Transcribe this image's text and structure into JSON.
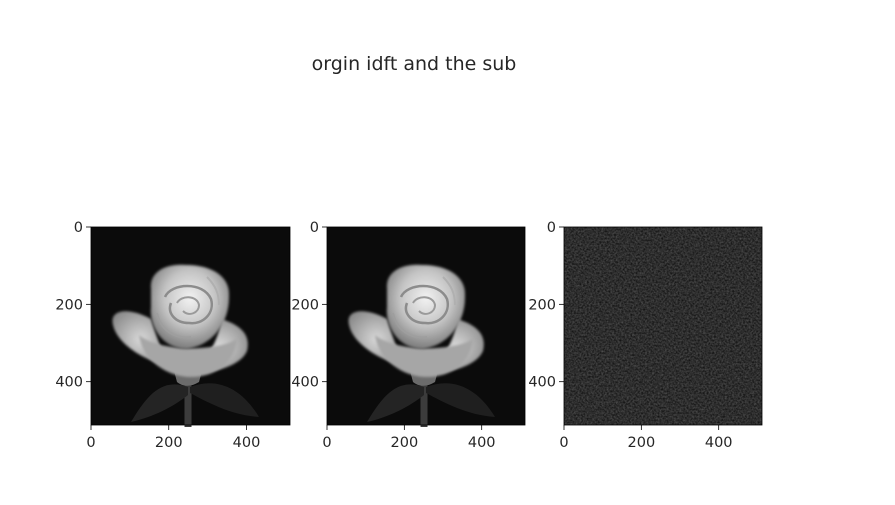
{
  "title": "orgin idft and the sub",
  "chart_data": [
    {
      "type": "image",
      "subject": "grayscale rose",
      "xlim": [
        0,
        512
      ],
      "ylim": [
        512,
        0
      ],
      "xticks": [
        0,
        200,
        400
      ],
      "yticks": [
        0,
        200,
        400
      ],
      "xtick_labels": [
        "0",
        "200",
        "400"
      ],
      "ytick_labels": [
        "0",
        "200",
        "400"
      ]
    },
    {
      "type": "image",
      "subject": "grayscale rose (idft reconstruction)",
      "xlim": [
        0,
        512
      ],
      "ylim": [
        512,
        0
      ],
      "xticks": [
        0,
        200,
        400
      ],
      "yticks": [
        0,
        200,
        400
      ],
      "xtick_labels": [
        "0",
        "200",
        "400"
      ],
      "ytick_labels": [
        "0",
        "200",
        "400"
      ]
    },
    {
      "type": "image",
      "subject": "difference (near-black noise)",
      "xlim": [
        0,
        512
      ],
      "ylim": [
        512,
        0
      ],
      "xticks": [
        0,
        200,
        400
      ],
      "yticks": [
        0,
        200,
        400
      ],
      "xtick_labels": [
        "0",
        "200",
        "400"
      ],
      "ytick_labels": [
        "0",
        "200",
        "400"
      ]
    }
  ]
}
